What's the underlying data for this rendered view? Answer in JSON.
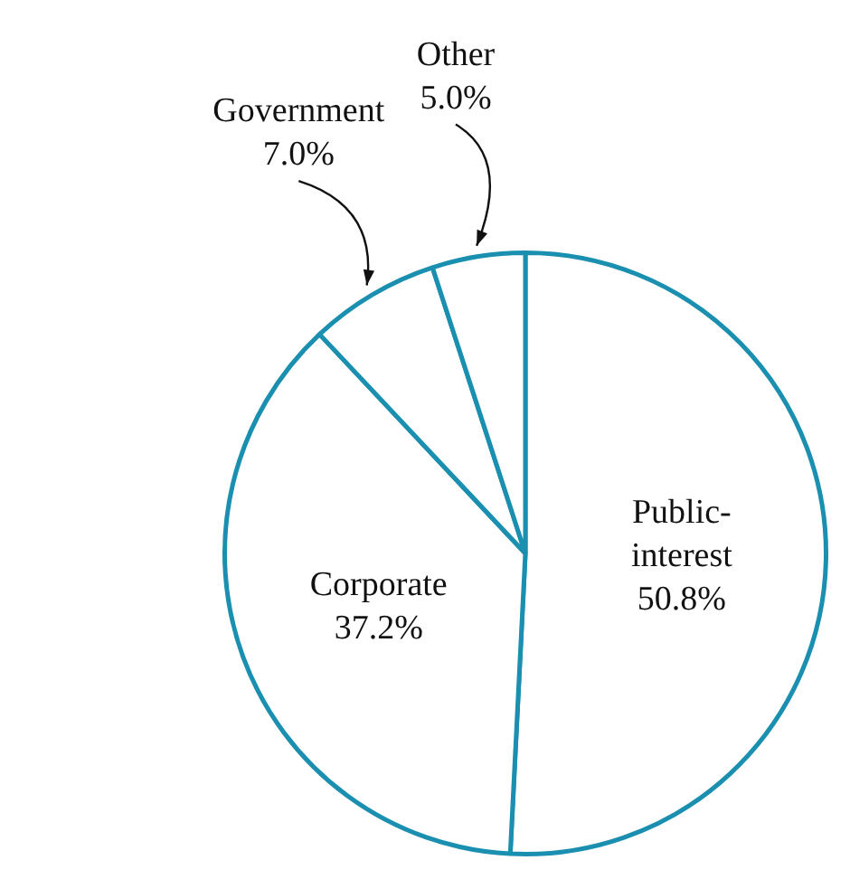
{
  "chart_data": {
    "type": "pie",
    "categories": [
      "Public-interest",
      "Corporate",
      "Government",
      "Other"
    ],
    "values": [
      50.8,
      37.2,
      7.0,
      5.0
    ],
    "value_labels": [
      "50.8%",
      "37.2%",
      "7.0%",
      "5.0%"
    ],
    "colors": [
      "#ffffff",
      "#ffffff",
      "#ffffff",
      "#ffffff"
    ],
    "legend": false
  }
}
